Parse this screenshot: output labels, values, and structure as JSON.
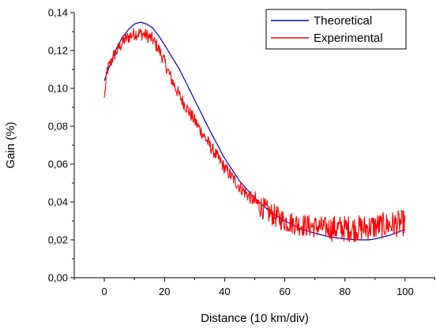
{
  "chart_data": {
    "type": "line",
    "title": "",
    "xlabel": "Distance (10 km/div)",
    "ylabel": "Gain (%)",
    "xlim": [
      -10,
      110
    ],
    "ylim": [
      0,
      0.14
    ],
    "x_ticks": [
      0,
      20,
      40,
      60,
      80,
      100
    ],
    "x_tick_labels": [
      "0",
      "20",
      "40",
      "60",
      "80",
      "100"
    ],
    "y_ticks": [
      0,
      0.02,
      0.04,
      0.06,
      0.08,
      0.1,
      0.12,
      0.14
    ],
    "y_tick_labels": [
      "0,00",
      "0,02",
      "0,04",
      "0,06",
      "0,08",
      "0,10",
      "0,12",
      "0,14"
    ],
    "grid": false,
    "legend_position": "top-right",
    "series": [
      {
        "name": "Theoretical",
        "color": "#0000cc",
        "x": [
          0,
          2,
          4,
          6,
          8,
          10,
          12,
          14,
          16,
          18,
          20,
          25,
          30,
          35,
          40,
          45,
          50,
          55,
          60,
          65,
          70,
          75,
          80,
          85,
          88,
          90,
          95,
          100
        ],
        "y": [
          0.104,
          0.113,
          0.121,
          0.127,
          0.131,
          0.134,
          0.135,
          0.134,
          0.132,
          0.128,
          0.123,
          0.11,
          0.094,
          0.078,
          0.063,
          0.051,
          0.042,
          0.035,
          0.03,
          0.026,
          0.0235,
          0.0215,
          0.0205,
          0.02,
          0.02,
          0.0205,
          0.0225,
          0.0255
        ]
      },
      {
        "name": "Experimental",
        "color": "#ff0000",
        "x": [
          0,
          1,
          2,
          3,
          4,
          5,
          6,
          7,
          8,
          9,
          10,
          12,
          14,
          16,
          18,
          20,
          22,
          25,
          30,
          35,
          40,
          45,
          50,
          55,
          60,
          65,
          70,
          75,
          80,
          85,
          90,
          95,
          100
        ],
        "y": [
          0.095,
          0.11,
          0.113,
          0.117,
          0.119,
          0.122,
          0.124,
          0.126,
          0.127,
          0.128,
          0.129,
          0.129,
          0.128,
          0.126,
          0.121,
          0.114,
          0.106,
          0.096,
          0.083,
          0.07,
          0.058,
          0.048,
          0.04,
          0.034,
          0.03,
          0.028,
          0.027,
          0.026,
          0.026,
          0.026,
          0.027,
          0.028,
          0.029
        ]
      }
    ]
  }
}
